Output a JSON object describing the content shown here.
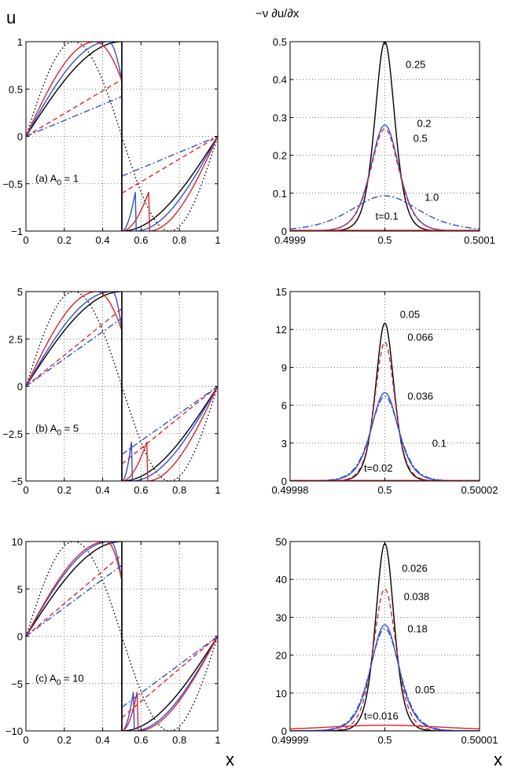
{
  "figure": {
    "left_ylabel": "u",
    "right_ylabel": "−ν ∂u/∂x",
    "xlabel_left": "x",
    "xlabel_right": "x"
  },
  "chart_data": [
    {
      "id": "a-left",
      "type": "line",
      "annotation": "(a) A₀ = 1",
      "annotation_main": "(a) A",
      "annotation_sub": "0",
      "annotation_tail": " = 1",
      "xlim": [
        0,
        1
      ],
      "ylim": [
        -1,
        1
      ],
      "xticks": [
        0,
        0.2,
        0.4,
        0.6,
        0.8,
        1
      ],
      "xtick_labels": [
        "0",
        "0.2",
        "0.4",
        "0.6",
        "0.8",
        "1"
      ],
      "yticks": [
        -1,
        -0.5,
        0,
        0.5,
        1
      ],
      "ytick_labels": [
        "−1",
        "−0.5",
        "0",
        "0.5",
        "1"
      ],
      "series": [
        {
          "name": "black solid",
          "color": "#000000",
          "dash": "",
          "amp": 1,
          "shift": 0,
          "kind": "sine"
        },
        {
          "name": "black dotted",
          "color": "#000000",
          "dash": "1.5,3",
          "amp": 1,
          "kind": "sine_full"
        },
        {
          "name": "blue solid",
          "color": "#2a4fe6",
          "dash": "",
          "amp": 1,
          "shift": 0.07,
          "kind": "sine"
        },
        {
          "name": "red solid",
          "color": "#e52222",
          "dash": "",
          "amp": 1,
          "shift": 0.14,
          "kind": "sine"
        },
        {
          "name": "red dashed",
          "color": "#e52222",
          "dash": "6,4",
          "amp": 0.6,
          "kind": "linear"
        },
        {
          "name": "blue dash-dot",
          "color": "#2a4fe6",
          "dash": "8,3,2,3",
          "amp": 0.42,
          "kind": "linear"
        }
      ]
    },
    {
      "id": "a-right",
      "type": "line",
      "xlim": [
        0.4999,
        0.5001
      ],
      "ylim": [
        0,
        0.5
      ],
      "xticks": [
        0.4999,
        0.5,
        0.5001
      ],
      "xtick_labels": [
        "0.4999",
        "0.5",
        "0.5001"
      ],
      "yticks": [
        0,
        0.1,
        0.2,
        0.3,
        0.4,
        0.5
      ],
      "ytick_labels": [
        "0",
        "0.1",
        "0.2",
        "0.3",
        "0.4",
        "0.5"
      ],
      "series": [
        {
          "name": "0.25",
          "color": "#000000",
          "dash": "",
          "peak": 0.5,
          "width": 0.14
        },
        {
          "name": "0.2",
          "color": "#2a4fe6",
          "dash": "",
          "peak": 0.28,
          "width": 0.2
        },
        {
          "name": "0.5",
          "color": "#e52222",
          "dash": "6,4",
          "peak": 0.27,
          "width": 0.2
        },
        {
          "name": "1.0",
          "color": "#2a4fe6",
          "dash": "8,3,2,3",
          "peak": 0.093,
          "width": 0.48
        },
        {
          "name": "t=0.1",
          "color": "#e52222",
          "dash": "",
          "peak": 0.002,
          "width": 5
        }
      ],
      "labels": [
        "0.25",
        "0.2",
        "0.5",
        "1.0",
        "t=0.1"
      ]
    },
    {
      "id": "b-left",
      "type": "line",
      "annotation": "(b) A₀ = 5",
      "annotation_main": "(b) A",
      "annotation_sub": "0",
      "annotation_tail": " = 5",
      "xlim": [
        0,
        1
      ],
      "ylim": [
        -5,
        5
      ],
      "xticks": [
        0,
        0.2,
        0.4,
        0.6,
        0.8,
        1
      ],
      "xtick_labels": [
        "0",
        "0.2",
        "0.4",
        "0.6",
        "0.8",
        "1"
      ],
      "yticks": [
        -5,
        -2.5,
        0,
        2.5,
        5
      ],
      "ytick_labels": [
        "−5",
        "−2.5",
        "0",
        "2.5",
        "5"
      ],
      "series": [
        {
          "name": "black solid",
          "color": "#000000",
          "dash": "",
          "amp": 5,
          "shift": 0,
          "kind": "sine"
        },
        {
          "name": "black dotted",
          "color": "#000000",
          "dash": "1.5,3",
          "amp": 5,
          "kind": "sine_full"
        },
        {
          "name": "blue solid",
          "color": "#2a4fe6",
          "dash": "",
          "amp": 5,
          "shift": 0.05,
          "kind": "sine"
        },
        {
          "name": "red solid",
          "color": "#e52222",
          "dash": "",
          "amp": 5,
          "shift": 0.13,
          "kind": "sine"
        },
        {
          "name": "red dashed",
          "color": "#e52222",
          "dash": "6,4",
          "amp": 4.1,
          "kind": "linear"
        },
        {
          "name": "blue dash-dot",
          "color": "#2a4fe6",
          "dash": "8,3,2,3",
          "amp": 3.6,
          "kind": "linear"
        }
      ]
    },
    {
      "id": "b-right",
      "type": "line",
      "xlim": [
        0.49998,
        0.50002
      ],
      "ylim": [
        0,
        15
      ],
      "xticks": [
        0.49998,
        0.5,
        0.50002
      ],
      "xtick_labels": [
        "0.49998",
        "0.5",
        "0.50002"
      ],
      "yticks": [
        0,
        3,
        6,
        9,
        12,
        15
      ],
      "ytick_labels": [
        "0",
        "3",
        "6",
        "9",
        "12",
        "15"
      ],
      "series": [
        {
          "name": "0.05",
          "color": "#000000",
          "dash": "",
          "peak": 12.5,
          "width": 0.13
        },
        {
          "name": "0.066",
          "color": "#e52222",
          "dash": "6,4",
          "peak": 11,
          "width": 0.14
        },
        {
          "name": "0.036",
          "color": "#2a4fe6",
          "dash": "",
          "peak": 7,
          "width": 0.19
        },
        {
          "name": "0.1",
          "color": "#2a4fe6",
          "dash": "8,3,2,3",
          "peak": 6.7,
          "width": 0.2
        },
        {
          "name": "t=0.02",
          "color": "#e52222",
          "dash": "",
          "peak": 0.04,
          "width": 5
        }
      ],
      "labels": [
        "0.05",
        "0.066",
        "0.036",
        "0.1",
        "t=0.02"
      ]
    },
    {
      "id": "c-left",
      "type": "line",
      "annotation": "(c) A₀ = 10",
      "annotation_main": "(c) A",
      "annotation_sub": "0",
      "annotation_tail": " = 10",
      "xlim": [
        0,
        1
      ],
      "ylim": [
        -10,
        10
      ],
      "xticks": [
        0,
        0.2,
        0.4,
        0.6,
        0.8,
        1
      ],
      "xtick_labels": [
        "0",
        "0.2",
        "0.4",
        "0.6",
        "0.8",
        "1"
      ],
      "yticks": [
        -10,
        -5,
        0,
        5,
        10
      ],
      "ytick_labels": [
        "−10",
        "−5",
        "0",
        "5",
        "10"
      ],
      "series": [
        {
          "name": "black solid",
          "color": "#000000",
          "dash": "",
          "amp": 10,
          "shift": 0,
          "kind": "sine"
        },
        {
          "name": "black dotted",
          "color": "#000000",
          "dash": "1.5,3",
          "amp": 10,
          "kind": "sine_full"
        },
        {
          "name": "blue solid",
          "color": "#2a4fe6",
          "dash": "",
          "amp": 10,
          "shift": 0.06,
          "kind": "sine"
        },
        {
          "name": "red solid",
          "color": "#e52222",
          "dash": "",
          "amp": 10,
          "shift": 0.08,
          "kind": "sine"
        },
        {
          "name": "red dashed",
          "color": "#e52222",
          "dash": "6,4",
          "amp": 8.6,
          "kind": "linear"
        },
        {
          "name": "blue dash-dot",
          "color": "#2a4fe6",
          "dash": "8,3,2,3",
          "amp": 7.5,
          "kind": "linear"
        }
      ]
    },
    {
      "id": "c-right",
      "type": "line",
      "xlim": [
        0.49999,
        0.50001
      ],
      "ylim": [
        0,
        50
      ],
      "xticks": [
        0.49999,
        0.5,
        0.50001
      ],
      "xtick_labels": [
        "0.49999",
        "0.5",
        "0.50001"
      ],
      "yticks": [
        0,
        10,
        20,
        30,
        40,
        50
      ],
      "ytick_labels": [
        "0",
        "10",
        "20",
        "30",
        "40",
        "50"
      ],
      "series": [
        {
          "name": "0.026",
          "color": "#000000",
          "dash": "",
          "peak": 49.5,
          "width": 0.13
        },
        {
          "name": "0.038",
          "color": "#e52222",
          "dash": "6,4",
          "peak": 37.5,
          "width": 0.16
        },
        {
          "name": "0.18",
          "color": "#2a4fe6",
          "dash": "",
          "peak": 28,
          "width": 0.2
        },
        {
          "name": "0.05",
          "color": "#2a4fe6",
          "dash": "8,3,2,3",
          "peak": 27,
          "width": 0.21
        },
        {
          "name": "t=0.016",
          "color": "#e52222",
          "dash": "",
          "peak": 1.5,
          "width": 0.9
        }
      ],
      "labels": [
        "0.026",
        "0.038",
        "0.18",
        "0.05",
        "t=0.016"
      ]
    }
  ]
}
